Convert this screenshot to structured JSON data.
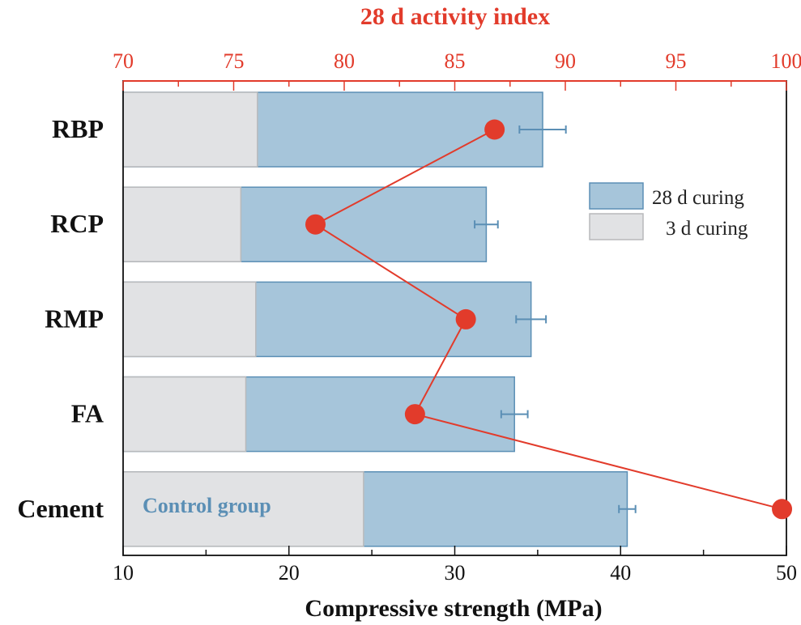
{
  "chart_data": {
    "type": "bar",
    "orientation": "horizontal",
    "categories": [
      "RBP",
      "RCP",
      "RMP",
      "FA",
      "Cement"
    ],
    "series": [
      {
        "name": "28 d curing",
        "values": [
          35.3,
          31.9,
          34.6,
          33.6,
          40.4
        ],
        "error": [
          1.4,
          0.7,
          0.9,
          0.8,
          0.5
        ],
        "color": "#a6c5da",
        "edge": "#5b8fb5"
      },
      {
        "name": "3 d curing",
        "values": [
          18.1,
          17.1,
          18.0,
          17.4,
          24.5
        ],
        "color": "#e1e2e4",
        "edge": "#b8b9bb"
      }
    ],
    "activity_index": {
      "name": "28 d activity index",
      "values": [
        86.8,
        78.7,
        85.5,
        83.2,
        99.8
      ],
      "color": "#e23b2b"
    },
    "xlabel": "Compressive strength (MPa)",
    "xlim": [
      10,
      50
    ],
    "xticks": [
      "10",
      "20",
      "30",
      "40",
      "50"
    ],
    "top_axis_label": "28 d activity index",
    "top_xlim": [
      70,
      100
    ],
    "top_xticks": [
      "70",
      "75",
      "80",
      "85",
      "90",
      "95",
      "100"
    ],
    "legend": [
      "28 d curing",
      "3 d curing"
    ],
    "legend_position": "top-right",
    "annotation": "Control group"
  }
}
